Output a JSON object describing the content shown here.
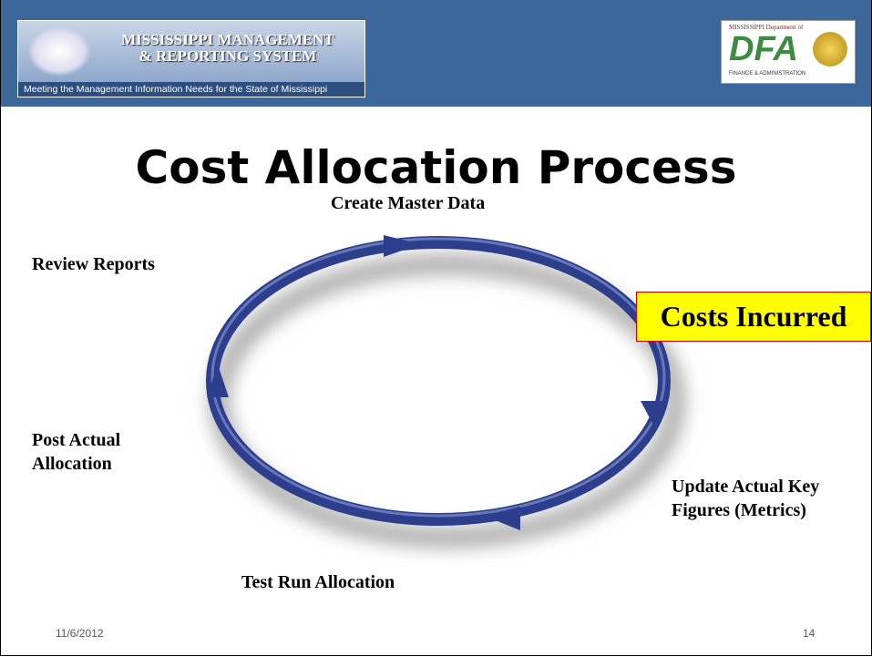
{
  "header": {
    "logo_title": [
      "MISSISSIPPI MANAGEMENT",
      "& REPORTING SYSTEM"
    ],
    "tagline": "Meeting the Management Information Needs for the State of Mississippi",
    "dfa_logo": {
      "top": "MISSISSIPPI Department of",
      "mark": "DFA",
      "bottom": "FINANCE & ADMINISTRATION"
    }
  },
  "title": "Cost Allocation Process",
  "steps": [
    "Create Master Data",
    "Costs Incurred",
    "Update Actual Key Figures (Metrics)",
    "Test Run Allocation",
    "Post Actual Allocation",
    "Review Reports"
  ],
  "footer": {
    "date": "11/6/2012",
    "page": "14"
  }
}
